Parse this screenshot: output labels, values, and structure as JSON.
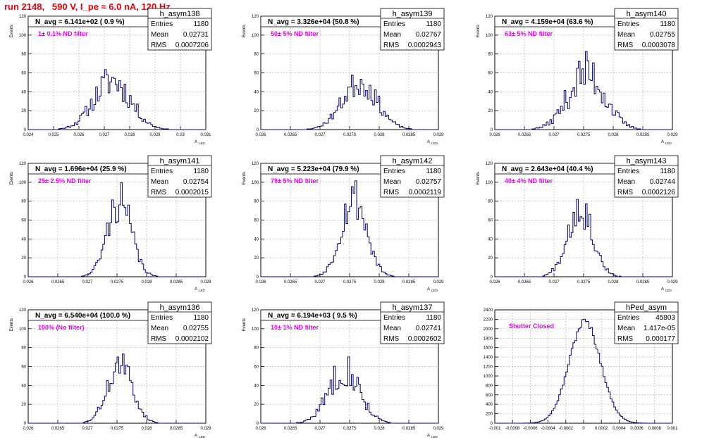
{
  "canvas_title": "run 2148,   590 V, I_pe ≈ 6.0 nA, 120 Hz",
  "colors": {
    "title": "#e8000b",
    "annotation": "#e800e8",
    "hist": "#00007a",
    "grid": "#b0b0b0"
  },
  "chart_data": [
    {
      "type": "bar",
      "name": "h_asym138",
      "title": "N_avg = 6.141e+02 ( 0.9 %)",
      "annotation": "1± 0.1% ND filter",
      "ylabel": "Events",
      "xlabel": "A_LED",
      "xlim": [
        0.024,
        0.031
      ],
      "ylim": [
        0,
        120
      ],
      "xticks": [
        "0.024",
        "0.025",
        "0.026",
        "0.027",
        "0.028",
        "0.029",
        "0.03",
        "0.031"
      ],
      "yticks": [
        "0",
        "20",
        "40",
        "60",
        "80",
        "100",
        "120"
      ],
      "stats": [
        [
          "Entries",
          "1180"
        ],
        [
          "Mean",
          "0.02731"
        ],
        [
          "RMS",
          "0.0007206"
        ]
      ],
      "mean": 0.02731,
      "rms": 0.0007206,
      "bin_width": 7e-05,
      "peak": 52,
      "noise": 0.35,
      "seed": 11
    },
    {
      "type": "bar",
      "name": "h_asym139",
      "title": "N_avg = 3.326e+04 (50.8 %)",
      "annotation": "50± 5% ND filter",
      "ylabel": "Events",
      "xlabel": "A_LED",
      "xlim": [
        0.026,
        0.029
      ],
      "ylim": [
        0,
        120
      ],
      "xticks": [
        "0.026",
        "0.0265",
        "0.027",
        "0.0275",
        "0.028",
        "0.0285",
        "0.029"
      ],
      "yticks": [
        "0",
        "20",
        "40",
        "60",
        "80",
        "100",
        "120"
      ],
      "stats": [
        [
          "Entries",
          "1180"
        ],
        [
          "Mean",
          "0.02767"
        ],
        [
          "RMS",
          "0.0002943"
        ]
      ],
      "mean": 0.02767,
      "rms": 0.0002943,
      "bin_width": 3e-05,
      "peak": 50,
      "noise": 0.3,
      "seed": 23
    },
    {
      "type": "bar",
      "name": "h_asym140",
      "title": "N_avg = 4.159e+04 (63.6 %)",
      "annotation": "63± 5% ND filter",
      "ylabel": "Events",
      "xlabel": "A_LED",
      "xlim": [
        0.026,
        0.029
      ],
      "ylim": [
        0,
        120
      ],
      "xticks": [
        "0.026",
        "0.0265",
        "0.027",
        "0.0275",
        "0.028",
        "0.0285",
        "0.029"
      ],
      "yticks": [
        "0",
        "20",
        "40",
        "60",
        "80",
        "100",
        "120"
      ],
      "stats": [
        [
          "Entries",
          "1180"
        ],
        [
          "Mean",
          "0.02755"
        ],
        [
          "RMS",
          "0.0003078"
        ]
      ],
      "mean": 0.02755,
      "rms": 0.0003078,
      "bin_width": 3e-05,
      "peak": 60,
      "noise": 0.4,
      "seed": 37
    },
    {
      "type": "bar",
      "name": "h_asym141",
      "title": "N_avg = 1.696e+04 (25.9 %)",
      "annotation": "25± 2.5% ND filter",
      "ylabel": "Events",
      "xlabel": "A_LED",
      "xlim": [
        0.026,
        0.029
      ],
      "ylim": [
        0,
        120
      ],
      "xticks": [
        "0.026",
        "0.0265",
        "0.027",
        "0.0275",
        "0.028",
        "0.0285",
        "0.029"
      ],
      "yticks": [
        "0",
        "20",
        "40",
        "60",
        "80",
        "100",
        "120"
      ],
      "stats": [
        [
          "Entries",
          "1180"
        ],
        [
          "Mean",
          "0.02754"
        ],
        [
          "RMS",
          "0.0002015"
        ]
      ],
      "mean": 0.02754,
      "rms": 0.0002015,
      "bin_width": 3e-05,
      "peak": 80,
      "noise": 0.28,
      "seed": 41
    },
    {
      "type": "bar",
      "name": "h_asym142",
      "title": "N_avg = 5.223e+04 (79.9 %)",
      "annotation": "79± 5% ND filter",
      "ylabel": "Events",
      "xlabel": "A_LED",
      "xlim": [
        0.026,
        0.029
      ],
      "ylim": [
        0,
        120
      ],
      "xticks": [
        "0.026",
        "0.0265",
        "0.027",
        "0.0275",
        "0.028",
        "0.0285",
        "0.029"
      ],
      "yticks": [
        "0",
        "20",
        "40",
        "60",
        "80",
        "100",
        "120"
      ],
      "stats": [
        [
          "Entries",
          "1180"
        ],
        [
          "Mean",
          "0.02757"
        ],
        [
          "RMS",
          "0.0002119"
        ]
      ],
      "mean": 0.02757,
      "rms": 0.0002119,
      "bin_width": 3e-05,
      "peak": 85,
      "noise": 0.28,
      "seed": 53
    },
    {
      "type": "bar",
      "name": "h_asym143",
      "title": "N_avg = 2.643e+04 (40.4 %)",
      "annotation": "40± 4% ND filter",
      "ylabel": "Events",
      "xlabel": "A_LED",
      "xlim": [
        0.026,
        0.029
      ],
      "ylim": [
        0,
        120
      ],
      "xticks": [
        "0.026",
        "0.0265",
        "0.027",
        "0.0275",
        "0.028",
        "0.0285",
        "0.029"
      ],
      "yticks": [
        "0",
        "20",
        "40",
        "60",
        "80",
        "100",
        "120"
      ],
      "stats": [
        [
          "Entries",
          "1180"
        ],
        [
          "Mean",
          "0.02744"
        ],
        [
          "RMS",
          "0.0002126"
        ]
      ],
      "mean": 0.02744,
      "rms": 0.0002126,
      "bin_width": 3e-05,
      "peak": 75,
      "noise": 0.3,
      "seed": 67
    },
    {
      "type": "bar",
      "name": "h_asym136",
      "title": "N_avg = 6.540e+04 (100.0 %)",
      "annotation": "100% (No filter)",
      "ylabel": "Events",
      "xlabel": "A_LED",
      "xlim": [
        0.026,
        0.029
      ],
      "ylim": [
        0,
        120
      ],
      "xticks": [
        "0.026",
        "0.0265",
        "0.027",
        "0.0275",
        "0.028",
        "0.0285",
        "0.029"
      ],
      "yticks": [
        "0",
        "20",
        "40",
        "60",
        "80",
        "100",
        "120"
      ],
      "stats": [
        [
          "Entries",
          "1180"
        ],
        [
          "Mean",
          "0.02755"
        ],
        [
          "RMS",
          "0.0002102"
        ]
      ],
      "mean": 0.02755,
      "rms": 0.0002102,
      "bin_width": 3e-05,
      "peak": 62,
      "noise": 0.25,
      "seed": 71
    },
    {
      "type": "bar",
      "name": "h_asym137",
      "title": "N_avg = 6.194e+03 ( 9.5 %)",
      "annotation": "10± 1% ND filter",
      "ylabel": "Events",
      "xlabel": "A_LED",
      "xlim": [
        0.026,
        0.029
      ],
      "ylim": [
        0,
        120
      ],
      "xticks": [
        "0.026",
        "0.0265",
        "0.027",
        "0.0275",
        "0.028",
        "0.0285",
        "0.029"
      ],
      "yticks": [
        "0",
        "20",
        "40",
        "60",
        "80",
        "100",
        "120"
      ],
      "stats": [
        [
          "Entries",
          "1180"
        ],
        [
          "Mean",
          "0.02741"
        ],
        [
          "RMS",
          "0.0002602"
        ]
      ],
      "mean": 0.02741,
      "rms": 0.0002602,
      "bin_width": 3e-05,
      "peak": 58,
      "noise": 0.32,
      "seed": 83
    },
    {
      "type": "bar",
      "name": "hPed_asym",
      "title": "",
      "annotation": "Shutter Closed",
      "ylabel": "",
      "xlabel": "",
      "xlim": [
        -0.001,
        0.001
      ],
      "ylim": [
        0,
        2400
      ],
      "xticks": [
        "-0.001",
        "-0.0008",
        "-0.0006",
        "-0.0004",
        "-0.0002",
        "0",
        "0.0002",
        "0.0004",
        "0.0006",
        "0.0008",
        "0.001"
      ],
      "yticks": [
        "0",
        "200",
        "400",
        "600",
        "800",
        "1000",
        "1200",
        "1400",
        "1600",
        "1800",
        "2000",
        "2200",
        "2400"
      ],
      "stats": [
        [
          "Entries",
          "45803"
        ],
        [
          "Mean",
          "1.417e-05"
        ],
        [
          "RMS",
          "0.000177"
        ]
      ],
      "mean": 1.417e-05,
      "rms": 0.000177,
      "bin_width": 2e-05,
      "peak": 2150,
      "noise": 0.04,
      "seed": 97
    }
  ]
}
